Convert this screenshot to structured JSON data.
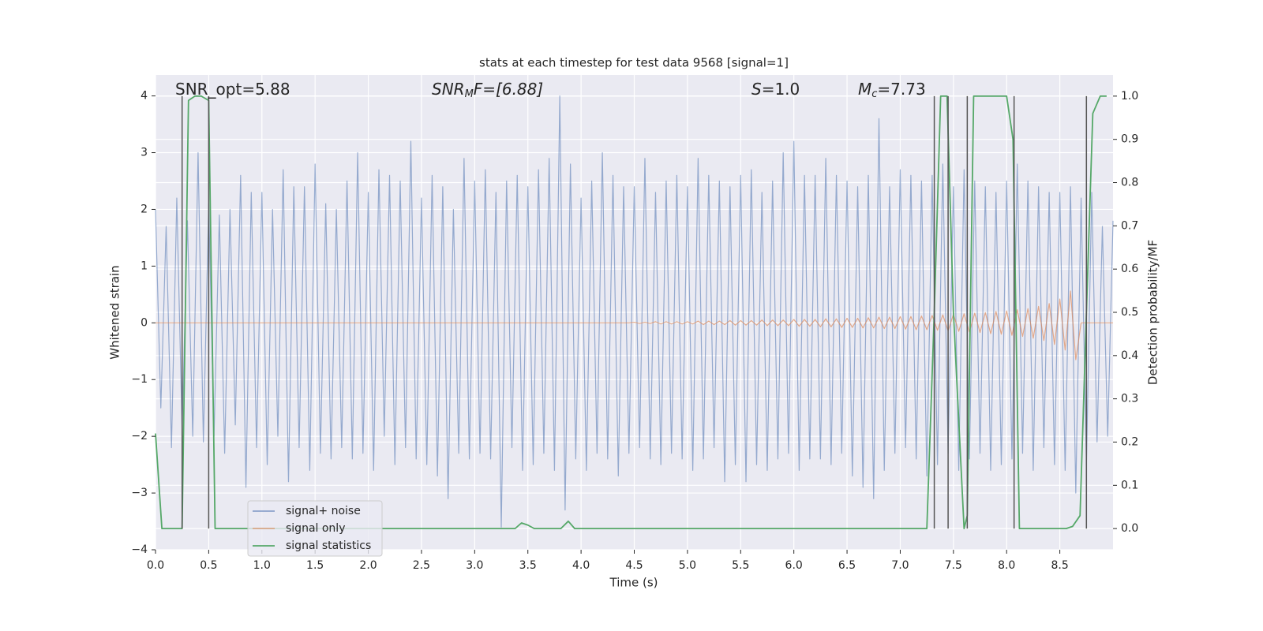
{
  "chart_data": {
    "type": "line",
    "title": "stats at each timestep for test data 9568 [signal=1]",
    "xlabel": "Time (s)",
    "ylabel": "Whitened strain",
    "y2label": "Detection probability/MF",
    "xlim": [
      0,
      9
    ],
    "ylim": [
      -4,
      4.37
    ],
    "y2lim": [
      -0.049,
      1.049
    ],
    "xticks": [
      {
        "value": 0,
        "label": "0.0"
      },
      0.5,
      {
        "value": 1,
        "label": "1.0"
      },
      1.5,
      {
        "value": 2,
        "label": "2.0"
      },
      2.5,
      {
        "value": 3,
        "label": "3.0"
      },
      3.5,
      {
        "value": 4,
        "label": "4.0"
      },
      4.5,
      {
        "value": 5,
        "label": "5.0"
      },
      5.5,
      {
        "value": 6,
        "label": "6.0"
      },
      6.5,
      {
        "value": 7,
        "label": "7.0"
      },
      7.5,
      {
        "value": 8,
        "label": "8.0"
      },
      8.5
    ],
    "yticks": [
      {
        "value": -4,
        "label": "−4"
      },
      {
        "value": -3,
        "label": "−3"
      },
      {
        "value": -2,
        "label": "−2"
      },
      {
        "value": -1,
        "label": "−1"
      },
      0,
      1,
      2,
      3,
      4
    ],
    "y2ticks": [
      {
        "value": 0,
        "label": "0.0"
      },
      0.1,
      0.2,
      0.3,
      0.4,
      0.5,
      0.6,
      0.7,
      0.8,
      0.9,
      {
        "value": 1,
        "label": "1.0"
      }
    ],
    "grid": true,
    "legend": "lower left",
    "annotations": [
      {
        "main": "SNR_opt=5.88"
      },
      {
        "main": "SNR",
        "sub": "M",
        "rest": "F=[6.88]"
      },
      {
        "main": "S",
        "rest": "=1.0"
      },
      {
        "main": "M",
        "sub": "c",
        "rest": "=7.73"
      }
    ],
    "vlines": {
      "color": "#555555",
      "x": [
        0.25,
        0.5,
        7.32,
        7.45,
        7.63,
        8.07,
        8.75
      ]
    },
    "x": [
      0,
      0.05,
      0.1,
      0.15,
      0.2,
      0.25,
      0.3,
      0.35,
      0.4,
      0.45,
      0.5,
      0.55,
      0.6,
      0.65,
      0.7,
      0.75,
      0.8,
      0.85,
      0.9,
      0.95,
      1,
      1.05,
      1.1,
      1.15,
      1.2,
      1.25,
      1.3,
      1.35,
      1.4,
      1.45,
      1.5,
      1.55,
      1.6,
      1.65,
      1.7,
      1.75,
      1.8,
      1.85,
      1.9,
      1.95,
      2,
      2.05,
      2.1,
      2.15,
      2.2,
      2.25,
      2.3,
      2.35,
      2.4,
      2.45,
      2.5,
      2.55,
      2.6,
      2.65,
      2.7,
      2.75,
      2.8,
      2.85,
      2.9,
      2.95,
      3,
      3.05,
      3.1,
      3.15,
      3.2,
      3.25,
      3.3,
      3.35,
      3.4,
      3.45,
      3.5,
      3.55,
      3.6,
      3.65,
      3.7,
      3.75,
      3.8,
      3.85,
      3.9,
      3.95,
      4,
      4.05,
      4.1,
      4.15,
      4.2,
      4.25,
      4.3,
      4.35,
      4.4,
      4.45,
      4.5,
      4.55,
      4.6,
      4.65,
      4.7,
      4.75,
      4.8,
      4.85,
      4.9,
      4.95,
      5,
      5.05,
      5.1,
      5.15,
      5.2,
      5.25,
      5.3,
      5.35,
      5.4,
      5.45,
      5.5,
      5.55,
      5.6,
      5.65,
      5.7,
      5.75,
      5.8,
      5.85,
      5.9,
      5.95,
      6,
      6.05,
      6.1,
      6.15,
      6.2,
      6.25,
      6.3,
      6.35,
      6.4,
      6.45,
      6.5,
      6.55,
      6.6,
      6.65,
      6.7,
      6.75,
      6.8,
      6.85,
      6.9,
      6.95,
      7,
      7.05,
      7.1,
      7.15,
      7.2,
      7.25,
      7.3,
      7.35,
      7.4,
      7.45,
      7.5,
      7.55,
      7.6,
      7.65,
      7.7,
      7.75,
      7.8,
      7.85,
      7.9,
      7.95,
      8,
      8.05,
      8.1,
      8.15,
      8.2,
      8.25,
      8.3,
      8.35,
      8.4,
      8.45,
      8.5,
      8.55,
      8.6,
      8.65,
      8.7,
      8.75,
      8.8,
      8.85,
      8.9,
      8.95,
      9
    ],
    "series": [
      {
        "name": "signal+ noise",
        "color": "#4c72b0",
        "values": [
          2.0,
          -1.5,
          1.7,
          -2.2,
          2.2,
          -1.9,
          1.8,
          -2.0,
          3.0,
          -2.1,
          2.1,
          -2.0,
          1.9,
          -2.3,
          2.0,
          -1.8,
          2.6,
          -2.9,
          2.3,
          -2.2,
          2.3,
          -2.5,
          2.0,
          -2.0,
          2.7,
          -2.8,
          2.4,
          -2.2,
          2.4,
          -2.6,
          2.8,
          -2.3,
          2.1,
          -2.4,
          2.0,
          -2.2,
          2.5,
          -2.4,
          3.0,
          -2.3,
          2.3,
          -2.6,
          2.7,
          -2.0,
          2.6,
          -2.5,
          2.5,
          -2.2,
          3.2,
          -2.4,
          2.2,
          -2.5,
          2.6,
          -2.7,
          2.4,
          -3.1,
          2.0,
          -2.3,
          2.9,
          -2.4,
          2.5,
          -2.3,
          2.7,
          -2.4,
          2.3,
          -3.6,
          2.5,
          -2.2,
          2.6,
          -2.6,
          2.4,
          -2.5,
          2.7,
          -2.3,
          2.9,
          -2.6,
          4.0,
          -3.3,
          2.8,
          -2.4,
          2.2,
          -2.6,
          2.5,
          -2.3,
          3.0,
          -2.4,
          2.6,
          -2.7,
          2.4,
          -2.3,
          2.4,
          -2.2,
          2.9,
          -2.4,
          2.3,
          -2.5,
          2.5,
          -2.3,
          2.6,
          -2.4,
          2.4,
          -2.6,
          2.9,
          -2.4,
          2.6,
          -2.2,
          2.5,
          -2.8,
          2.4,
          -2.5,
          2.6,
          -2.8,
          2.7,
          -2.5,
          2.3,
          -2.6,
          2.5,
          -2.4,
          3.0,
          -2.3,
          3.2,
          -2.6,
          2.6,
          -2.4,
          2.6,
          -2.4,
          2.9,
          -2.5,
          2.6,
          -2.3,
          2.5,
          -2.7,
          2.4,
          -2.9,
          2.6,
          -3.1,
          3.6,
          -2.6,
          2.4,
          -2.3,
          2.7,
          -2.2,
          2.6,
          -2.4,
          2.5,
          -2.7,
          2.6,
          -2.5,
          2.8,
          -2.3,
          2.4,
          -2.6,
          2.7,
          -2.4,
          2.5,
          -2.3,
          2.4,
          -2.6,
          2.3,
          -2.5,
          2.5,
          -2.4,
          2.8,
          -2.3,
          2.5,
          -2.6,
          2.4,
          -2.2,
          2.3,
          -2.5,
          2.3,
          -2.6,
          2.4,
          -3.0,
          2.2,
          -2.5,
          2.3,
          -2.1,
          1.7,
          -2.0,
          1.8
        ]
      },
      {
        "name": "signal only",
        "color": "#dd8452",
        "values": [
          0,
          0,
          0,
          0,
          0,
          0,
          0,
          0,
          0,
          0,
          0,
          0,
          0,
          0,
          0,
          0,
          0,
          0,
          0,
          0,
          0,
          0,
          0,
          0,
          0,
          0,
          0,
          0,
          0,
          0,
          0,
          0,
          0,
          0,
          0,
          0,
          0,
          0,
          0,
          0,
          0,
          0,
          0,
          0,
          0,
          0,
          0,
          0,
          0,
          0,
          0,
          0,
          0,
          0,
          0,
          0,
          0,
          0,
          0,
          0,
          0,
          0,
          0,
          0,
          0,
          0,
          0,
          0,
          0,
          0,
          0,
          0,
          0,
          0,
          0,
          0,
          0,
          0,
          0,
          0,
          0,
          0,
          0,
          0,
          0,
          0,
          0,
          0,
          0,
          0,
          0.01,
          -0.01,
          0.01,
          -0.01,
          0.02,
          -0.02,
          0.02,
          -0.02,
          0.02,
          -0.02,
          0.02,
          -0.02,
          0.03,
          -0.03,
          0.03,
          -0.03,
          0.03,
          -0.03,
          0.04,
          -0.04,
          0.04,
          -0.04,
          0.04,
          -0.04,
          0.05,
          -0.05,
          0.05,
          -0.05,
          0.05,
          -0.05,
          0.06,
          -0.06,
          0.06,
          -0.06,
          0.06,
          -0.07,
          0.07,
          -0.07,
          0.07,
          -0.08,
          0.08,
          -0.08,
          0.08,
          -0.09,
          0.09,
          -0.09,
          0.1,
          -0.1,
          0.1,
          -0.1,
          0.11,
          -0.11,
          0.11,
          -0.12,
          0.12,
          -0.12,
          0.13,
          -0.13,
          0.14,
          -0.14,
          0.15,
          -0.15,
          0.16,
          -0.16,
          0.17,
          -0.17,
          0.18,
          -0.19,
          0.2,
          -0.2,
          0.21,
          -0.22,
          0.23,
          -0.24,
          0.25,
          -0.27,
          0.29,
          -0.31,
          0.34,
          -0.38,
          0.42,
          -0.48,
          0.56,
          -0.65,
          0,
          0,
          0,
          0,
          0,
          0,
          0
        ]
      },
      {
        "name": "signal statistics",
        "color": "#55a868",
        "axis": "y2",
        "x": [
          0,
          0.06,
          0.25,
          0.31,
          0.37,
          0.43,
          0.5,
          0.56,
          3.38,
          3.44,
          3.5,
          3.56,
          3.81,
          3.88,
          3.94,
          7.25,
          7.32,
          7.38,
          7.44,
          7.5,
          7.6,
          7.63,
          7.69,
          8,
          8.06,
          8.12,
          8.56,
          8.62,
          8.69,
          8.75,
          8.81,
          8.88,
          8.94
        ],
        "values": [
          0.22,
          0,
          0,
          0.99,
          1,
          1,
          0.99,
          0,
          0,
          0.013,
          0.008,
          0,
          0,
          0.017,
          0,
          0,
          0.5,
          1,
          1,
          0.5,
          0,
          0.03,
          1,
          1,
          0.9,
          0,
          0,
          0.005,
          0.03,
          0.5,
          0.96,
          1,
          1
        ]
      }
    ]
  }
}
